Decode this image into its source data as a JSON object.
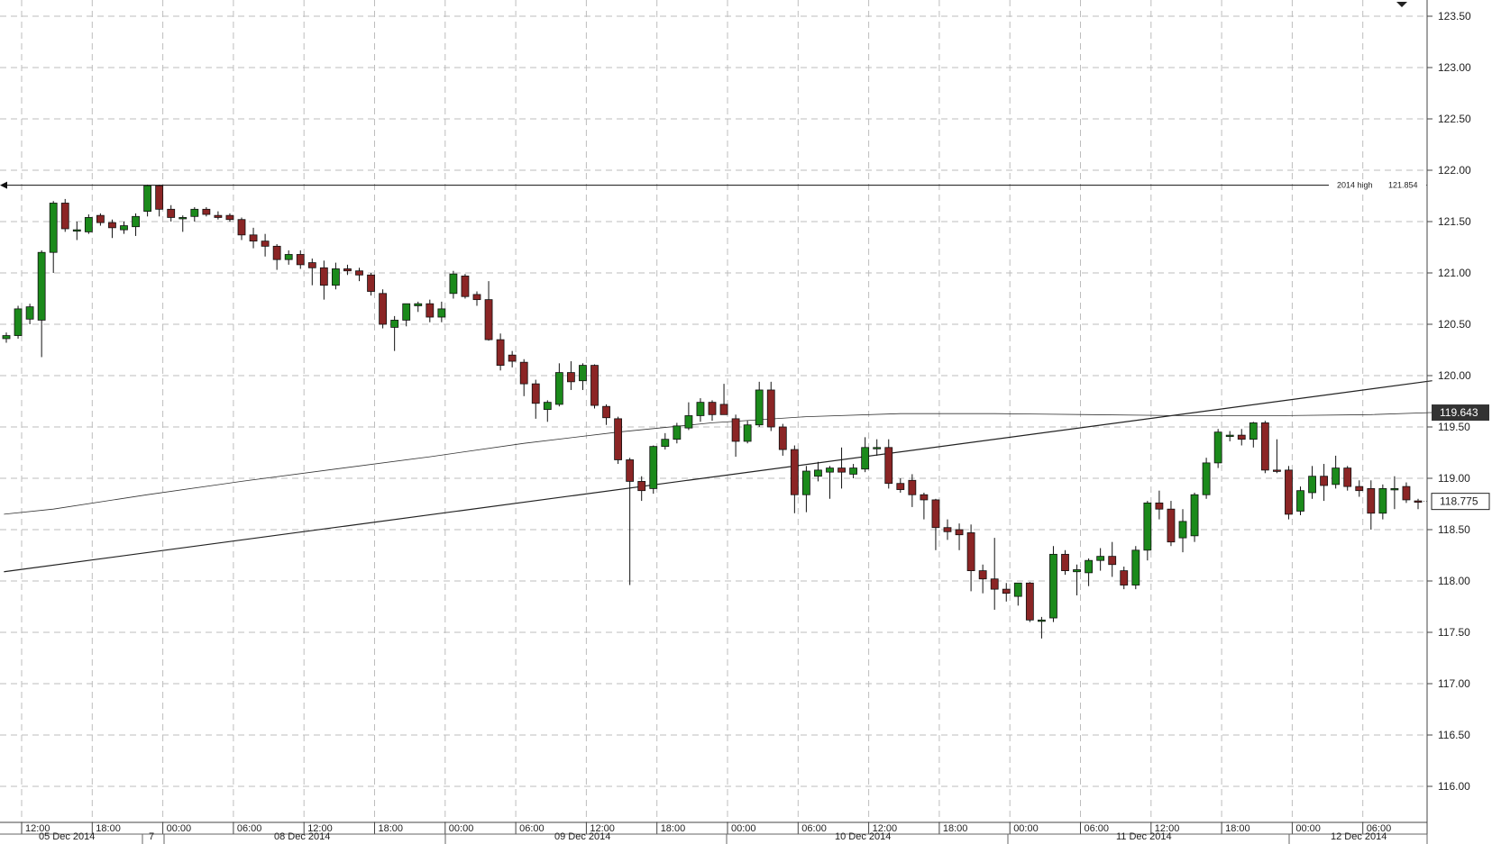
{
  "chart_data": {
    "type": "candlestick",
    "ylim": [
      115.6,
      123.65
    ],
    "y_ticks": [
      "123.50",
      "123.00",
      "122.50",
      "122.00",
      "121.50",
      "121.00",
      "120.50",
      "120.00",
      "119.50",
      "119.00",
      "118.50",
      "118.00",
      "117.50",
      "117.00",
      "116.50",
      "116.00"
    ],
    "x_time_labels": [
      "12:00",
      "18:00",
      "00:00",
      "06:00",
      "12:00",
      "18:00",
      "00:00",
      "06:00",
      "12:00",
      "18:00",
      "00:00",
      "06:00",
      "12:00",
      "18:00",
      "00:00",
      "06:00",
      "12:00",
      "18:00",
      "00:00",
      "06:00"
    ],
    "date_labels": [
      "05 Dec 2014",
      "7",
      "08 Dec 2014",
      "09 Dec 2014",
      "10 Dec 2014",
      "11 Dec 2014",
      "12 Dec 2014"
    ],
    "grid": true,
    "candles": [
      {
        "o": 120.36,
        "h": 120.42,
        "l": 120.32,
        "c": 120.39
      },
      {
        "o": 120.39,
        "h": 120.68,
        "l": 120.36,
        "c": 120.65
      },
      {
        "o": 120.55,
        "h": 120.7,
        "l": 120.5,
        "c": 120.67
      },
      {
        "o": 120.54,
        "h": 121.22,
        "l": 120.18,
        "c": 121.2
      },
      {
        "o": 121.2,
        "h": 121.7,
        "l": 121.0,
        "c": 121.68
      },
      {
        "o": 121.68,
        "h": 121.72,
        "l": 121.4,
        "c": 121.43
      },
      {
        "o": 121.42,
        "h": 121.5,
        "l": 121.32,
        "c": 121.42
      },
      {
        "o": 121.4,
        "h": 121.57,
        "l": 121.38,
        "c": 121.54
      },
      {
        "o": 121.56,
        "h": 121.58,
        "l": 121.46,
        "c": 121.49
      },
      {
        "o": 121.49,
        "h": 121.52,
        "l": 121.34,
        "c": 121.44
      },
      {
        "o": 121.42,
        "h": 121.5,
        "l": 121.38,
        "c": 121.46
      },
      {
        "o": 121.45,
        "h": 121.58,
        "l": 121.36,
        "c": 121.55
      },
      {
        "o": 121.6,
        "h": 121.86,
        "l": 121.55,
        "c": 121.85
      },
      {
        "o": 121.85,
        "h": 121.86,
        "l": 121.55,
        "c": 121.62
      },
      {
        "o": 121.62,
        "h": 121.66,
        "l": 121.5,
        "c": 121.54
      },
      {
        "o": 121.53,
        "h": 121.56,
        "l": 121.4,
        "c": 121.54
      },
      {
        "o": 121.55,
        "h": 121.64,
        "l": 121.5,
        "c": 121.62
      },
      {
        "o": 121.62,
        "h": 121.64,
        "l": 121.55,
        "c": 121.57
      },
      {
        "o": 121.56,
        "h": 121.6,
        "l": 121.52,
        "c": 121.54
      },
      {
        "o": 121.56,
        "h": 121.58,
        "l": 121.5,
        "c": 121.52
      },
      {
        "o": 121.52,
        "h": 121.54,
        "l": 121.32,
        "c": 121.37
      },
      {
        "o": 121.37,
        "h": 121.44,
        "l": 121.24,
        "c": 121.31
      },
      {
        "o": 121.31,
        "h": 121.38,
        "l": 121.16,
        "c": 121.26
      },
      {
        "o": 121.26,
        "h": 121.28,
        "l": 121.03,
        "c": 121.13
      },
      {
        "o": 121.13,
        "h": 121.22,
        "l": 121.08,
        "c": 121.18
      },
      {
        "o": 121.18,
        "h": 121.22,
        "l": 121.04,
        "c": 121.08
      },
      {
        "o": 121.1,
        "h": 121.14,
        "l": 120.88,
        "c": 121.05
      },
      {
        "o": 121.05,
        "h": 121.12,
        "l": 120.74,
        "c": 120.88
      },
      {
        "o": 120.88,
        "h": 121.1,
        "l": 120.84,
        "c": 121.04
      },
      {
        "o": 121.04,
        "h": 121.08,
        "l": 120.98,
        "c": 121.02
      },
      {
        "o": 121.02,
        "h": 121.05,
        "l": 120.92,
        "c": 120.98
      },
      {
        "o": 120.98,
        "h": 121.0,
        "l": 120.78,
        "c": 120.82
      },
      {
        "o": 120.8,
        "h": 120.84,
        "l": 120.46,
        "c": 120.5
      },
      {
        "o": 120.47,
        "h": 120.58,
        "l": 120.24,
        "c": 120.54
      },
      {
        "o": 120.54,
        "h": 120.7,
        "l": 120.48,
        "c": 120.7
      },
      {
        "o": 120.68,
        "h": 120.72,
        "l": 120.62,
        "c": 120.7
      },
      {
        "o": 120.7,
        "h": 120.74,
        "l": 120.52,
        "c": 120.57
      },
      {
        "o": 120.57,
        "h": 120.72,
        "l": 120.52,
        "c": 120.65
      },
      {
        "o": 120.8,
        "h": 121.02,
        "l": 120.75,
        "c": 120.99
      },
      {
        "o": 120.97,
        "h": 120.99,
        "l": 120.75,
        "c": 120.77
      },
      {
        "o": 120.79,
        "h": 120.82,
        "l": 120.68,
        "c": 120.74
      },
      {
        "o": 120.74,
        "h": 120.92,
        "l": 120.34,
        "c": 120.35
      },
      {
        "o": 120.35,
        "h": 120.41,
        "l": 120.05,
        "c": 120.1
      },
      {
        "o": 120.2,
        "h": 120.24,
        "l": 120.08,
        "c": 120.14
      },
      {
        "o": 120.13,
        "h": 120.16,
        "l": 119.8,
        "c": 119.92
      },
      {
        "o": 119.92,
        "h": 119.96,
        "l": 119.58,
        "c": 119.73
      },
      {
        "o": 119.67,
        "h": 119.76,
        "l": 119.55,
        "c": 119.74
      },
      {
        "o": 119.72,
        "h": 120.12,
        "l": 119.7,
        "c": 120.03
      },
      {
        "o": 120.03,
        "h": 120.14,
        "l": 119.86,
        "c": 119.94
      },
      {
        "o": 119.95,
        "h": 120.12,
        "l": 119.86,
        "c": 120.1
      },
      {
        "o": 120.1,
        "h": 120.11,
        "l": 119.68,
        "c": 119.71
      },
      {
        "o": 119.7,
        "h": 119.72,
        "l": 119.52,
        "c": 119.59
      },
      {
        "o": 119.58,
        "h": 119.6,
        "l": 119.14,
        "c": 119.18
      },
      {
        "o": 119.18,
        "h": 119.2,
        "l": 117.96,
        "c": 118.97
      },
      {
        "o": 118.97,
        "h": 119.02,
        "l": 118.78,
        "c": 118.88
      },
      {
        "o": 118.9,
        "h": 119.32,
        "l": 118.85,
        "c": 119.31
      },
      {
        "o": 119.31,
        "h": 119.44,
        "l": 119.28,
        "c": 119.38
      },
      {
        "o": 119.38,
        "h": 119.54,
        "l": 119.34,
        "c": 119.51
      },
      {
        "o": 119.49,
        "h": 119.74,
        "l": 119.47,
        "c": 119.61
      },
      {
        "o": 119.61,
        "h": 119.78,
        "l": 119.55,
        "c": 119.74
      },
      {
        "o": 119.74,
        "h": 119.76,
        "l": 119.56,
        "c": 119.62
      },
      {
        "o": 119.72,
        "h": 119.92,
        "l": 119.62,
        "c": 119.62
      },
      {
        "o": 119.58,
        "h": 119.62,
        "l": 119.21,
        "c": 119.36
      },
      {
        "o": 119.36,
        "h": 119.56,
        "l": 119.34,
        "c": 119.52
      },
      {
        "o": 119.52,
        "h": 119.94,
        "l": 119.5,
        "c": 119.86
      },
      {
        "o": 119.86,
        "h": 119.94,
        "l": 119.46,
        "c": 119.5
      },
      {
        "o": 119.5,
        "h": 119.53,
        "l": 119.22,
        "c": 119.28
      },
      {
        "o": 119.28,
        "h": 119.32,
        "l": 118.66,
        "c": 118.84
      },
      {
        "o": 118.84,
        "h": 119.12,
        "l": 118.67,
        "c": 119.07
      },
      {
        "o": 119.02,
        "h": 119.16,
        "l": 118.97,
        "c": 119.08
      },
      {
        "o": 119.06,
        "h": 119.12,
        "l": 118.8,
        "c": 119.1
      },
      {
        "o": 119.1,
        "h": 119.3,
        "l": 118.9,
        "c": 119.06
      },
      {
        "o": 119.04,
        "h": 119.14,
        "l": 119.0,
        "c": 119.1
      },
      {
        "o": 119.09,
        "h": 119.4,
        "l": 119.06,
        "c": 119.3
      },
      {
        "o": 119.3,
        "h": 119.38,
        "l": 119.22,
        "c": 119.3
      },
      {
        "o": 119.3,
        "h": 119.38,
        "l": 118.9,
        "c": 118.95
      },
      {
        "o": 118.95,
        "h": 119.0,
        "l": 118.86,
        "c": 118.89
      },
      {
        "o": 118.98,
        "h": 119.04,
        "l": 118.72,
        "c": 118.84
      },
      {
        "o": 118.84,
        "h": 118.86,
        "l": 118.6,
        "c": 118.79
      },
      {
        "o": 118.79,
        "h": 118.8,
        "l": 118.3,
        "c": 118.52
      },
      {
        "o": 118.52,
        "h": 118.6,
        "l": 118.4,
        "c": 118.48
      },
      {
        "o": 118.5,
        "h": 118.56,
        "l": 118.3,
        "c": 118.45
      },
      {
        "o": 118.47,
        "h": 118.55,
        "l": 117.9,
        "c": 118.1
      },
      {
        "o": 118.1,
        "h": 118.16,
        "l": 117.88,
        "c": 118.02
      },
      {
        "o": 118.02,
        "h": 118.42,
        "l": 117.72,
        "c": 117.92
      },
      {
        "o": 117.92,
        "h": 117.98,
        "l": 117.8,
        "c": 117.88
      },
      {
        "o": 117.85,
        "h": 117.94,
        "l": 117.76,
        "c": 117.98
      },
      {
        "o": 117.98,
        "h": 117.99,
        "l": 117.6,
        "c": 117.62
      },
      {
        "o": 117.62,
        "h": 117.65,
        "l": 117.44,
        "c": 117.62
      },
      {
        "o": 117.64,
        "h": 118.34,
        "l": 117.6,
        "c": 118.26
      },
      {
        "o": 118.26,
        "h": 118.3,
        "l": 118.06,
        "c": 118.1
      },
      {
        "o": 118.09,
        "h": 118.16,
        "l": 117.86,
        "c": 118.11
      },
      {
        "o": 118.08,
        "h": 118.22,
        "l": 117.95,
        "c": 118.2
      },
      {
        "o": 118.2,
        "h": 118.32,
        "l": 118.1,
        "c": 118.24
      },
      {
        "o": 118.24,
        "h": 118.38,
        "l": 118.04,
        "c": 118.16
      },
      {
        "o": 118.1,
        "h": 118.14,
        "l": 117.92,
        "c": 117.96
      },
      {
        "o": 117.96,
        "h": 118.34,
        "l": 117.92,
        "c": 118.3
      },
      {
        "o": 118.3,
        "h": 118.78,
        "l": 118.2,
        "c": 118.76
      },
      {
        "o": 118.76,
        "h": 118.88,
        "l": 118.6,
        "c": 118.7
      },
      {
        "o": 118.7,
        "h": 118.78,
        "l": 118.34,
        "c": 118.38
      },
      {
        "o": 118.42,
        "h": 118.7,
        "l": 118.28,
        "c": 118.58
      },
      {
        "o": 118.44,
        "h": 118.86,
        "l": 118.38,
        "c": 118.84
      },
      {
        "o": 118.84,
        "h": 119.2,
        "l": 118.8,
        "c": 119.15
      },
      {
        "o": 119.15,
        "h": 119.48,
        "l": 119.1,
        "c": 119.45
      },
      {
        "o": 119.42,
        "h": 119.46,
        "l": 119.36,
        "c": 119.42
      },
      {
        "o": 119.42,
        "h": 119.48,
        "l": 119.32,
        "c": 119.38
      },
      {
        "o": 119.38,
        "h": 119.55,
        "l": 119.3,
        "c": 119.54
      },
      {
        "o": 119.54,
        "h": 119.56,
        "l": 119.05,
        "c": 119.08
      },
      {
        "o": 119.08,
        "h": 119.38,
        "l": 119.05,
        "c": 119.07
      },
      {
        "o": 119.08,
        "h": 119.12,
        "l": 118.6,
        "c": 118.65
      },
      {
        "o": 118.68,
        "h": 118.92,
        "l": 118.64,
        "c": 118.88
      },
      {
        "o": 118.86,
        "h": 119.12,
        "l": 118.8,
        "c": 119.02
      },
      {
        "o": 119.02,
        "h": 119.14,
        "l": 118.78,
        "c": 118.93
      },
      {
        "o": 118.94,
        "h": 119.22,
        "l": 118.9,
        "c": 119.1
      },
      {
        "o": 119.1,
        "h": 119.12,
        "l": 118.88,
        "c": 118.92
      },
      {
        "o": 118.92,
        "h": 118.98,
        "l": 118.82,
        "c": 118.88
      },
      {
        "o": 118.9,
        "h": 118.98,
        "l": 118.5,
        "c": 118.66
      },
      {
        "o": 118.66,
        "h": 118.94,
        "l": 118.6,
        "c": 118.9
      },
      {
        "o": 118.9,
        "h": 119.02,
        "l": 118.7,
        "c": 118.9
      },
      {
        "o": 118.92,
        "h": 118.96,
        "l": 118.76,
        "c": 118.79
      },
      {
        "o": 118.78,
        "h": 118.8,
        "l": 118.7,
        "c": 118.775
      }
    ],
    "horizontal_line": {
      "value": 121.854,
      "label": "2014 high",
      "value_label": "121.854"
    },
    "trendline": {
      "start": {
        "candle": -0.2,
        "value": 118.09
      },
      "end": {
        "candle": 121.2,
        "value": 119.95
      }
    },
    "moving_average": [
      {
        "candle": -0.2,
        "value": 118.65
      },
      {
        "candle": 4,
        "value": 118.7
      },
      {
        "candle": 12,
        "value": 118.84
      },
      {
        "candle": 20,
        "value": 118.97
      },
      {
        "candle": 28,
        "value": 119.09
      },
      {
        "candle": 36,
        "value": 119.21
      },
      {
        "candle": 44,
        "value": 119.34
      },
      {
        "candle": 52,
        "value": 119.45
      },
      {
        "candle": 60,
        "value": 119.54
      },
      {
        "candle": 68,
        "value": 119.6
      },
      {
        "candle": 76,
        "value": 119.63
      },
      {
        "candle": 84,
        "value": 119.63
      },
      {
        "candle": 92,
        "value": 119.62
      },
      {
        "candle": 100,
        "value": 119.61
      },
      {
        "candle": 108,
        "value": 119.61
      },
      {
        "candle": 116,
        "value": 119.62
      },
      {
        "candle": 121.2,
        "value": 119.64
      }
    ],
    "ma_value_label": "119.643",
    "last_price_label": "118.775",
    "colors": {
      "up": "#1b8a1b",
      "down": "#8b2525",
      "grid": "#bdbdbd",
      "text": "#222222"
    }
  }
}
